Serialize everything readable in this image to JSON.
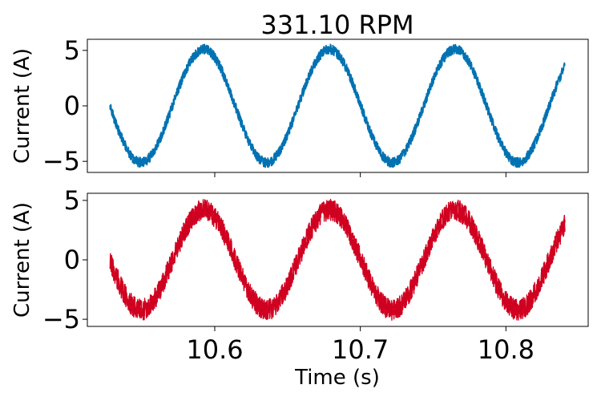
{
  "chart_data": {
    "type": "line",
    "title": "331.10 RPM",
    "xlabel": "Time (s)",
    "x_ticks": [
      10.6,
      10.7,
      10.8
    ],
    "x_tick_labels": [
      "10.6",
      "10.7",
      "10.8"
    ],
    "xlim": [
      10.5125,
      10.8565
    ],
    "panels": [
      {
        "ylabel": "Current (A)",
        "ylim": [
          -6.0,
          6.0
        ],
        "y_ticks": [
          5,
          0,
          -5
        ],
        "y_tick_labels": [
          "5",
          "0",
          "−5"
        ],
        "series": [
          {
            "color": "#0072B2",
            "x_range": [
              10.528,
              10.8405
            ],
            "amplitude": 5.1,
            "period_s": 0.0863,
            "peak_times": [
              10.5925,
              10.6788,
              10.7651
            ],
            "noise_band": 0.45
          }
        ]
      },
      {
        "ylabel": "Current (A)",
        "ylim": [
          -5.6,
          5.6
        ],
        "y_ticks": [
          5,
          0,
          -5
        ],
        "y_tick_labels": [
          "5",
          "0",
          "−5"
        ],
        "series": [
          {
            "color": "#D00020",
            "x_range": [
              10.528,
              10.8405
            ],
            "amplitude": 4.2,
            "period_s": 0.0863,
            "peak_times": [
              10.5925,
              10.6788,
              10.7651
            ],
            "noise_band": 0.9
          }
        ]
      }
    ]
  }
}
